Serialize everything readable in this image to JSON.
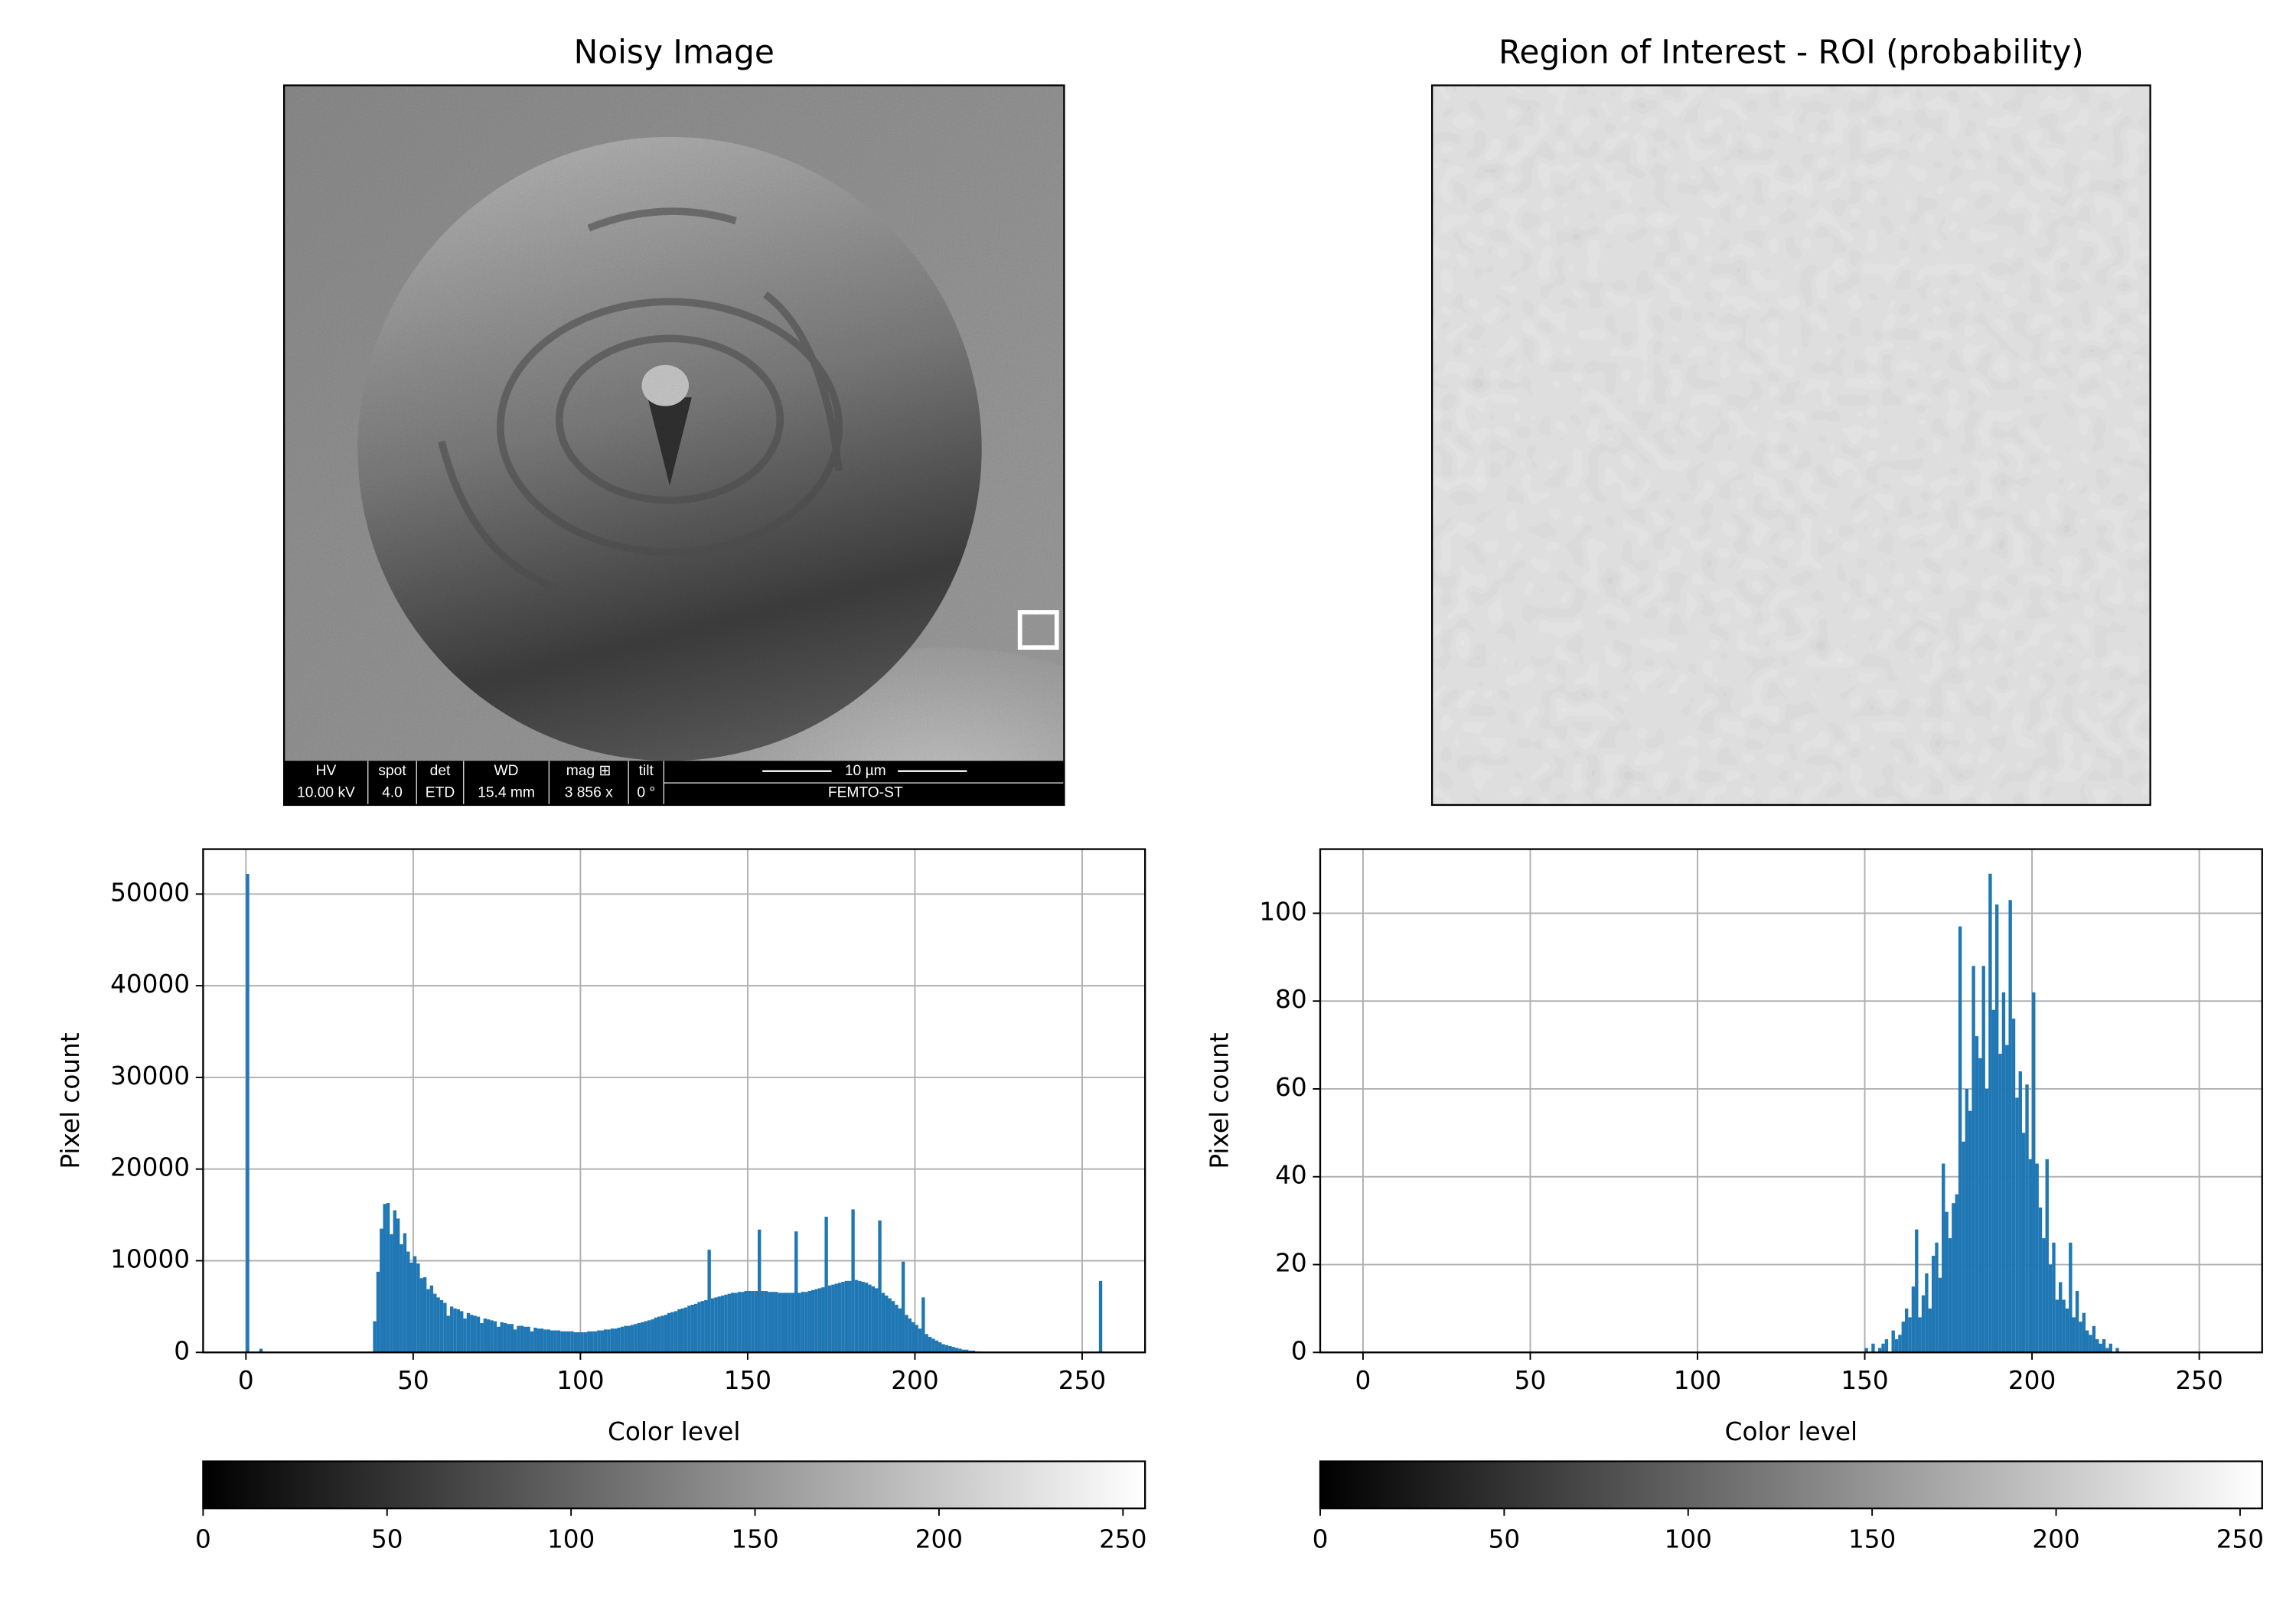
{
  "chart_data": [
    {
      "type": "image",
      "title": "Noisy Image",
      "info_labels": [
        "HV",
        "spot",
        "det",
        "WD",
        "mag ⊞",
        "tilt"
      ],
      "info_values": [
        "10.00 kV",
        "4.0",
        "ETD",
        "15.4 mm",
        "3 856 x",
        "0 °"
      ],
      "scale_bar": "10 µm",
      "institution": "FEMTO-ST"
    },
    {
      "type": "image",
      "title": "Region of Interest - ROI (probability)"
    },
    {
      "type": "histogram",
      "xlabel": "Color level",
      "ylabel": "Pixel count",
      "color": "#1f77b4",
      "grid": true,
      "xlim": [
        -12.8,
        268.8
      ],
      "xticks": [
        0,
        50,
        100,
        150,
        200,
        250
      ],
      "ylim": [
        0,
        54900
      ],
      "yticks": [
        0,
        10000,
        20000,
        30000,
        40000,
        50000
      ],
      "bins": [
        0,
        1,
        2,
        3,
        4,
        5,
        6,
        7,
        8,
        9,
        10,
        11,
        12,
        13,
        14,
        15,
        16,
        17,
        18,
        19,
        20,
        21,
        22,
        23,
        24,
        25,
        26,
        27,
        28,
        29,
        30,
        31,
        32,
        33,
        34,
        35,
        36,
        37,
        38,
        39,
        40,
        41,
        42,
        43,
        44,
        45,
        46,
        47,
        48,
        49,
        50,
        51,
        52,
        53,
        54,
        55,
        56,
        57,
        58,
        59,
        60,
        61,
        62,
        63,
        64,
        65,
        66,
        67,
        68,
        69,
        70,
        71,
        72,
        73,
        74,
        75,
        76,
        77,
        78,
        79,
        80,
        81,
        82,
        83,
        84,
        85,
        86,
        87,
        88,
        89,
        90,
        91,
        92,
        93,
        94,
        95,
        96,
        97,
        98,
        99,
        100,
        101,
        102,
        103,
        104,
        105,
        106,
        107,
        108,
        109,
        110,
        111,
        112,
        113,
        114,
        115,
        116,
        117,
        118,
        119,
        120,
        121,
        122,
        123,
        124,
        125,
        126,
        127,
        128,
        129,
        130,
        131,
        132,
        133,
        134,
        135,
        136,
        137,
        138,
        139,
        140,
        141,
        142,
        143,
        144,
        145,
        146,
        147,
        148,
        149,
        150,
        151,
        152,
        153,
        154,
        155,
        156,
        157,
        158,
        159,
        160,
        161,
        162,
        163,
        164,
        165,
        166,
        167,
        168,
        169,
        170,
        171,
        172,
        173,
        174,
        175,
        176,
        177,
        178,
        179,
        180,
        181,
        182,
        183,
        184,
        185,
        186,
        187,
        188,
        189,
        190,
        191,
        192,
        193,
        194,
        195,
        196,
        197,
        198,
        199,
        200,
        201,
        202,
        203,
        204,
        205,
        206,
        207,
        208,
        209,
        210,
        211,
        212,
        213,
        214,
        215,
        216,
        217,
        218,
        219,
        220,
        221,
        222,
        223,
        224,
        225,
        226,
        227,
        228,
        229,
        230,
        231,
        232,
        233,
        234,
        235,
        236,
        237,
        238,
        239,
        240,
        241,
        242,
        243,
        244,
        245,
        246,
        247,
        248,
        249,
        250,
        251,
        252,
        253,
        254,
        255,
        256
      ],
      "values": [
        52200,
        0,
        0,
        0,
        400,
        0,
        0,
        0,
        0,
        0,
        0,
        0,
        0,
        0,
        0,
        0,
        0,
        0,
        0,
        0,
        0,
        0,
        0,
        0,
        0,
        0,
        0,
        0,
        0,
        0,
        0,
        0,
        0,
        0,
        0,
        0,
        0,
        0,
        3400,
        8800,
        13500,
        16200,
        16300,
        12900,
        15500,
        14600,
        11800,
        13000,
        11000,
        9800,
        10500,
        9700,
        8100,
        8200,
        6900,
        7300,
        6400,
        6000,
        5700,
        5400,
        4000,
        5000,
        4800,
        4700,
        4500,
        3700,
        4300,
        4100,
        4000,
        3900,
        3200,
        3700,
        3600,
        3500,
        3400,
        2800,
        3300,
        3200,
        3100,
        3100,
        2500,
        2900,
        2900,
        2800,
        2800,
        2300,
        2700,
        2600,
        2600,
        2500,
        2500,
        2400,
        2400,
        2400,
        2300,
        2300,
        2300,
        2300,
        2200,
        2200,
        2200,
        2200,
        2300,
        2300,
        2300,
        2400,
        2400,
        2500,
        2500,
        2600,
        2600,
        2700,
        2800,
        2900,
        2900,
        3000,
        3100,
        3200,
        3300,
        3400,
        3500,
        3600,
        3800,
        3900,
        4000,
        4100,
        4300,
        4400,
        4500,
        4700,
        4800,
        4900,
        5100,
        5200,
        5300,
        5500,
        5600,
        5700,
        11200,
        5900,
        6000,
        6100,
        6200,
        6300,
        6400,
        6500,
        6500,
        6600,
        6600,
        6700,
        6700,
        6700,
        6700,
        13400,
        6700,
        6700,
        6600,
        6600,
        6600,
        6500,
        6500,
        6500,
        6500,
        6500,
        13200,
        6500,
        6600,
        6600,
        6700,
        6800,
        6900,
        7000,
        7100,
        14800,
        7300,
        7400,
        7500,
        7600,
        7700,
        7800,
        7800,
        15600,
        7900,
        7800,
        7700,
        7600,
        7400,
        7200,
        7000,
        14400,
        6500,
        6200,
        5900,
        5600,
        5200,
        4800,
        9900,
        4100,
        3700,
        3300,
        3000,
        2600,
        6000,
        2000,
        1700,
        1500,
        1300,
        1100,
        900,
        800,
        700,
        600,
        500,
        400,
        300,
        300,
        200,
        200,
        100,
        100,
        0,
        0,
        0,
        0,
        0,
        0,
        0,
        0,
        0,
        0,
        0,
        0,
        0,
        0,
        0,
        0,
        0,
        0,
        0,
        0,
        0,
        0,
        0,
        0,
        0,
        0,
        0,
        0,
        0,
        0,
        0,
        0,
        0,
        0,
        0,
        7800
      ]
    },
    {
      "type": "histogram",
      "xlabel": "Color level",
      "ylabel": "Pixel count",
      "color": "#1f77b4",
      "grid": true,
      "xlim": [
        -12.8,
        268.8
      ],
      "xticks": [
        0,
        50,
        100,
        150,
        200,
        250
      ],
      "ylim": [
        0,
        114.6
      ],
      "yticks": [
        0,
        20,
        40,
        60,
        80,
        100
      ],
      "bins": [
        0,
        1,
        2,
        3,
        4,
        5,
        6,
        7,
        8,
        9,
        10,
        11,
        12,
        13,
        14,
        15,
        16,
        17,
        18,
        19,
        20,
        21,
        22,
        23,
        24,
        25,
        26,
        27,
        28,
        29,
        30,
        31,
        32,
        33,
        34,
        35,
        36,
        37,
        38,
        39,
        40,
        41,
        42,
        43,
        44,
        45,
        46,
        47,
        48,
        49,
        50,
        51,
        52,
        53,
        54,
        55,
        56,
        57,
        58,
        59,
        60,
        61,
        62,
        63,
        64,
        65,
        66,
        67,
        68,
        69,
        70,
        71,
        72,
        73,
        74,
        75,
        76,
        77,
        78,
        79,
        80,
        81,
        82,
        83,
        84,
        85,
        86,
        87,
        88,
        89,
        90,
        91,
        92,
        93,
        94,
        95,
        96,
        97,
        98,
        99,
        100,
        101,
        102,
        103,
        104,
        105,
        106,
        107,
        108,
        109,
        110,
        111,
        112,
        113,
        114,
        115,
        116,
        117,
        118,
        119,
        120,
        121,
        122,
        123,
        124,
        125,
        126,
        127,
        128,
        129,
        130,
        131,
        132,
        133,
        134,
        135,
        136,
        137,
        138,
        139,
        140,
        141,
        142,
        143,
        144,
        145,
        146,
        147,
        148,
        149,
        150,
        151,
        152,
        153,
        154,
        155,
        156,
        157,
        158,
        159,
        160,
        161,
        162,
        163,
        164,
        165,
        166,
        167,
        168,
        169,
        170,
        171,
        172,
        173,
        174,
        175,
        176,
        177,
        178,
        179,
        180,
        181,
        182,
        183,
        184,
        185,
        186,
        187,
        188,
        189,
        190,
        191,
        192,
        193,
        194,
        195,
        196,
        197,
        198,
        199,
        200,
        201,
        202,
        203,
        204,
        205,
        206,
        207,
        208,
        209,
        210,
        211,
        212,
        213,
        214,
        215,
        216,
        217,
        218,
        219,
        220,
        221,
        222,
        223,
        224,
        225,
        226,
        227,
        228,
        229,
        230,
        231,
        232,
        233,
        234,
        235,
        236,
        237,
        238,
        239,
        240,
        241,
        242,
        243,
        244,
        245,
        246,
        247,
        248,
        249,
        250,
        251,
        252,
        253,
        254,
        255,
        256
      ],
      "values": [
        0,
        0,
        0,
        0,
        0,
        0,
        0,
        0,
        0,
        0,
        0,
        0,
        0,
        0,
        0,
        0,
        0,
        0,
        0,
        0,
        0,
        0,
        0,
        0,
        0,
        0,
        0,
        0,
        0,
        0,
        0,
        0,
        0,
        0,
        0,
        0,
        0,
        0,
        0,
        0,
        0,
        0,
        0,
        0,
        0,
        0,
        0,
        0,
        0,
        0,
        0,
        0,
        0,
        0,
        0,
        0,
        0,
        0,
        0,
        0,
        0,
        0,
        0,
        0,
        0,
        0,
        0,
        0,
        0,
        0,
        0,
        0,
        0,
        0,
        0,
        0,
        0,
        0,
        0,
        0,
        0,
        0,
        0,
        0,
        0,
        0,
        0,
        0,
        0,
        0,
        0,
        0,
        0,
        0,
        0,
        0,
        0,
        0,
        0,
        0,
        0,
        0,
        0,
        0,
        0,
        0,
        0,
        0,
        0,
        0,
        0,
        0,
        0,
        0,
        0,
        0,
        0,
        0,
        0,
        0,
        0,
        0,
        0,
        0,
        0,
        0,
        0,
        0,
        0,
        0,
        0,
        0,
        0,
        0,
        0,
        0,
        0,
        0,
        0,
        0,
        0,
        0,
        0,
        0,
        0,
        0,
        0,
        0,
        0,
        0,
        1,
        0,
        2,
        0,
        1,
        2,
        3,
        0,
        5,
        3,
        4,
        7,
        10,
        8,
        15,
        28,
        8,
        13,
        18,
        10,
        22,
        25,
        17,
        43,
        32,
        26,
        34,
        36,
        97,
        48,
        60,
        55,
        88,
        72,
        67,
        88,
        60,
        109,
        78,
        102,
        68,
        82,
        70,
        103,
        76,
        58,
        64,
        50,
        61,
        44,
        82,
        43,
        33,
        26,
        44,
        20,
        25,
        12,
        16,
        12,
        10,
        25,
        8,
        14,
        7,
        9,
        5,
        4,
        6,
        3,
        2,
        3,
        1,
        2,
        0,
        1,
        0,
        0,
        0,
        0,
        0,
        0,
        0,
        0,
        0,
        0,
        0,
        0,
        0,
        0,
        0,
        0,
        0,
        0,
        0,
        0,
        0,
        0,
        0,
        0,
        0,
        0,
        0,
        0,
        0,
        0
      ]
    },
    {
      "type": "colorbar",
      "colors": [
        "#000000",
        "#ffffff"
      ],
      "xlim": [
        0,
        256
      ],
      "xticks": [
        0,
        50,
        100,
        150,
        200,
        250
      ]
    },
    {
      "type": "colorbar",
      "colors": [
        "#000000",
        "#ffffff"
      ],
      "xlim": [
        0,
        256
      ],
      "xticks": [
        0,
        50,
        100,
        150,
        200,
        250
      ]
    }
  ]
}
